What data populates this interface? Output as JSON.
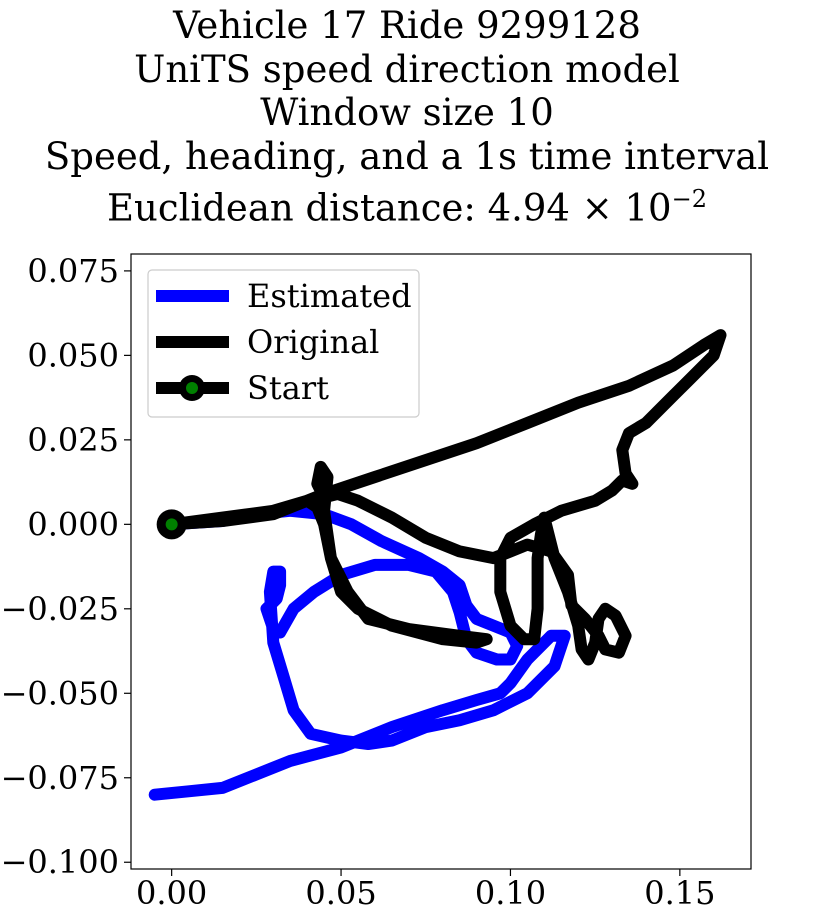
{
  "title": {
    "line1": "Vehicle 17 Ride 9299128",
    "line2": "UniTS speed direction model",
    "line3": "Window size 10",
    "line4": "Speed, heading, and a 1s time interval",
    "line5_prefix": "Euclidean distance: 4.94 × 10",
    "line5_exponent": "−2"
  },
  "chart_data": {
    "type": "line",
    "xlim": [
      -0.012,
      0.171
    ],
    "ylim": [
      -0.102,
      0.08
    ],
    "xticks": [
      0.0,
      0.05,
      0.1,
      0.15
    ],
    "xtick_labels": [
      "0.00",
      "0.05",
      "0.10",
      "0.15"
    ],
    "yticks": [
      0.075,
      0.05,
      0.025,
      0.0,
      -0.025,
      -0.05,
      -0.075,
      -0.1
    ],
    "ytick_labels": [
      "0.075",
      "0.050",
      "0.025",
      "0.000",
      "−0.025",
      "−0.050",
      "−0.075",
      "−0.100"
    ],
    "grid": false,
    "legend": {
      "placement": "top-left",
      "entries": [
        "Estimated",
        "Original",
        "Start"
      ]
    },
    "series": [
      {
        "name": "Estimated",
        "color": "#0000ff",
        "points": [
          [
            0.0,
            0.0
          ],
          [
            0.015,
            0.001
          ],
          [
            0.025,
            0.003
          ],
          [
            0.035,
            0.004
          ],
          [
            0.045,
            0.003
          ],
          [
            0.053,
            0.0
          ],
          [
            0.062,
            -0.005
          ],
          [
            0.073,
            -0.01
          ],
          [
            0.08,
            -0.014
          ],
          [
            0.085,
            -0.018
          ],
          [
            0.087,
            -0.024
          ],
          [
            0.09,
            -0.028
          ],
          [
            0.095,
            -0.03
          ],
          [
            0.1,
            -0.032
          ],
          [
            0.102,
            -0.036
          ],
          [
            0.1,
            -0.04
          ],
          [
            0.096,
            -0.04
          ],
          [
            0.09,
            -0.038
          ],
          [
            0.087,
            -0.034
          ],
          [
            0.085,
            -0.026
          ],
          [
            0.083,
            -0.02
          ],
          [
            0.078,
            -0.014
          ],
          [
            0.07,
            -0.012
          ],
          [
            0.06,
            -0.012
          ],
          [
            0.05,
            -0.015
          ],
          [
            0.042,
            -0.02
          ],
          [
            0.036,
            -0.025
          ],
          [
            0.032,
            -0.032
          ],
          [
            0.03,
            -0.031
          ],
          [
            0.028,
            -0.025
          ],
          [
            0.031,
            -0.022
          ],
          [
            0.032,
            -0.018
          ],
          [
            0.032,
            -0.014
          ],
          [
            0.03,
            -0.014
          ],
          [
            0.029,
            -0.02
          ],
          [
            0.03,
            -0.035
          ],
          [
            0.033,
            -0.045
          ],
          [
            0.036,
            -0.055
          ],
          [
            0.041,
            -0.062
          ],
          [
            0.05,
            -0.064
          ],
          [
            0.058,
            -0.065
          ],
          [
            0.065,
            -0.064
          ],
          [
            0.075,
            -0.06
          ],
          [
            0.085,
            -0.058
          ],
          [
            0.095,
            -0.055
          ],
          [
            0.105,
            -0.05
          ],
          [
            0.113,
            -0.042
          ],
          [
            0.116,
            -0.033
          ],
          [
            0.112,
            -0.033
          ],
          [
            0.105,
            -0.04
          ],
          [
            0.1,
            -0.047
          ],
          [
            0.097,
            -0.05
          ],
          [
            0.09,
            -0.052
          ],
          [
            0.08,
            -0.055
          ],
          [
            0.065,
            -0.06
          ],
          [
            0.05,
            -0.066
          ],
          [
            0.035,
            -0.07
          ],
          [
            0.025,
            -0.074
          ],
          [
            0.015,
            -0.078
          ],
          [
            0.005,
            -0.079
          ],
          [
            -0.005,
            -0.08
          ]
        ]
      },
      {
        "name": "Original",
        "color": "#000000",
        "points": [
          [
            0.0,
            0.0
          ],
          [
            0.015,
            0.001
          ],
          [
            0.03,
            0.003
          ],
          [
            0.045,
            0.009
          ],
          [
            0.06,
            0.014
          ],
          [
            0.075,
            0.019
          ],
          [
            0.09,
            0.024
          ],
          [
            0.105,
            0.03
          ],
          [
            0.12,
            0.036
          ],
          [
            0.135,
            0.041
          ],
          [
            0.148,
            0.047
          ],
          [
            0.157,
            0.053
          ],
          [
            0.162,
            0.056
          ],
          [
            0.16,
            0.05
          ],
          [
            0.155,
            0.045
          ],
          [
            0.148,
            0.038
          ],
          [
            0.14,
            0.03
          ],
          [
            0.135,
            0.027
          ],
          [
            0.133,
            0.022
          ],
          [
            0.134,
            0.015
          ],
          [
            0.136,
            0.012
          ],
          [
            0.133,
            0.013
          ],
          [
            0.13,
            0.01
          ],
          [
            0.125,
            0.007
          ],
          [
            0.115,
            0.004
          ],
          [
            0.107,
            0.0
          ],
          [
            0.1,
            -0.004
          ],
          [
            0.097,
            -0.01
          ],
          [
            0.097,
            -0.02
          ],
          [
            0.1,
            -0.03
          ],
          [
            0.104,
            -0.034
          ],
          [
            0.107,
            -0.034
          ],
          [
            0.108,
            -0.025
          ],
          [
            0.108,
            -0.01
          ],
          [
            0.109,
            -0.003
          ],
          [
            0.11,
            0.002
          ],
          [
            0.113,
            -0.01
          ],
          [
            0.117,
            -0.02
          ],
          [
            0.12,
            -0.03
          ],
          [
            0.121,
            -0.037
          ],
          [
            0.123,
            -0.04
          ],
          [
            0.125,
            -0.035
          ],
          [
            0.126,
            -0.028
          ],
          [
            0.128,
            -0.025
          ],
          [
            0.131,
            -0.027
          ],
          [
            0.134,
            -0.033
          ],
          [
            0.132,
            -0.038
          ],
          [
            0.128,
            -0.037
          ],
          [
            0.126,
            -0.033
          ],
          [
            0.122,
            -0.028
          ],
          [
            0.118,
            -0.024
          ],
          [
            0.117,
            -0.015
          ],
          [
            0.112,
            -0.008
          ],
          [
            0.105,
            -0.006
          ],
          [
            0.1,
            -0.008
          ],
          [
            0.095,
            -0.01
          ],
          [
            0.085,
            -0.008
          ],
          [
            0.075,
            -0.004
          ],
          [
            0.065,
            0.002
          ],
          [
            0.055,
            0.007
          ],
          [
            0.049,
            0.009
          ],
          [
            0.045,
            0.008
          ],
          [
            0.043,
            0.012
          ],
          [
            0.044,
            0.017
          ],
          [
            0.046,
            0.014
          ],
          [
            0.045,
            0.004
          ],
          [
            0.047,
            -0.01
          ],
          [
            0.05,
            -0.02
          ],
          [
            0.055,
            -0.025
          ],
          [
            0.065,
            -0.03
          ],
          [
            0.08,
            -0.034
          ],
          [
            0.09,
            -0.035
          ],
          [
            0.093,
            -0.034
          ],
          [
            0.085,
            -0.033
          ],
          [
            0.07,
            -0.031
          ],
          [
            0.058,
            -0.028
          ],
          [
            0.052,
            -0.02
          ],
          [
            0.047,
            -0.01
          ],
          [
            0.045,
            0.0
          ],
          [
            0.043,
            0.005
          ],
          [
            0.04,
            0.007
          ],
          [
            0.03,
            0.004
          ],
          [
            0.015,
            0.002
          ],
          [
            0.0,
            0.0
          ]
        ]
      }
    ],
    "start_marker": {
      "name": "Start",
      "x": 0.0,
      "y": 0.0,
      "outer_color": "#000000",
      "inner_color": "#008000"
    }
  }
}
